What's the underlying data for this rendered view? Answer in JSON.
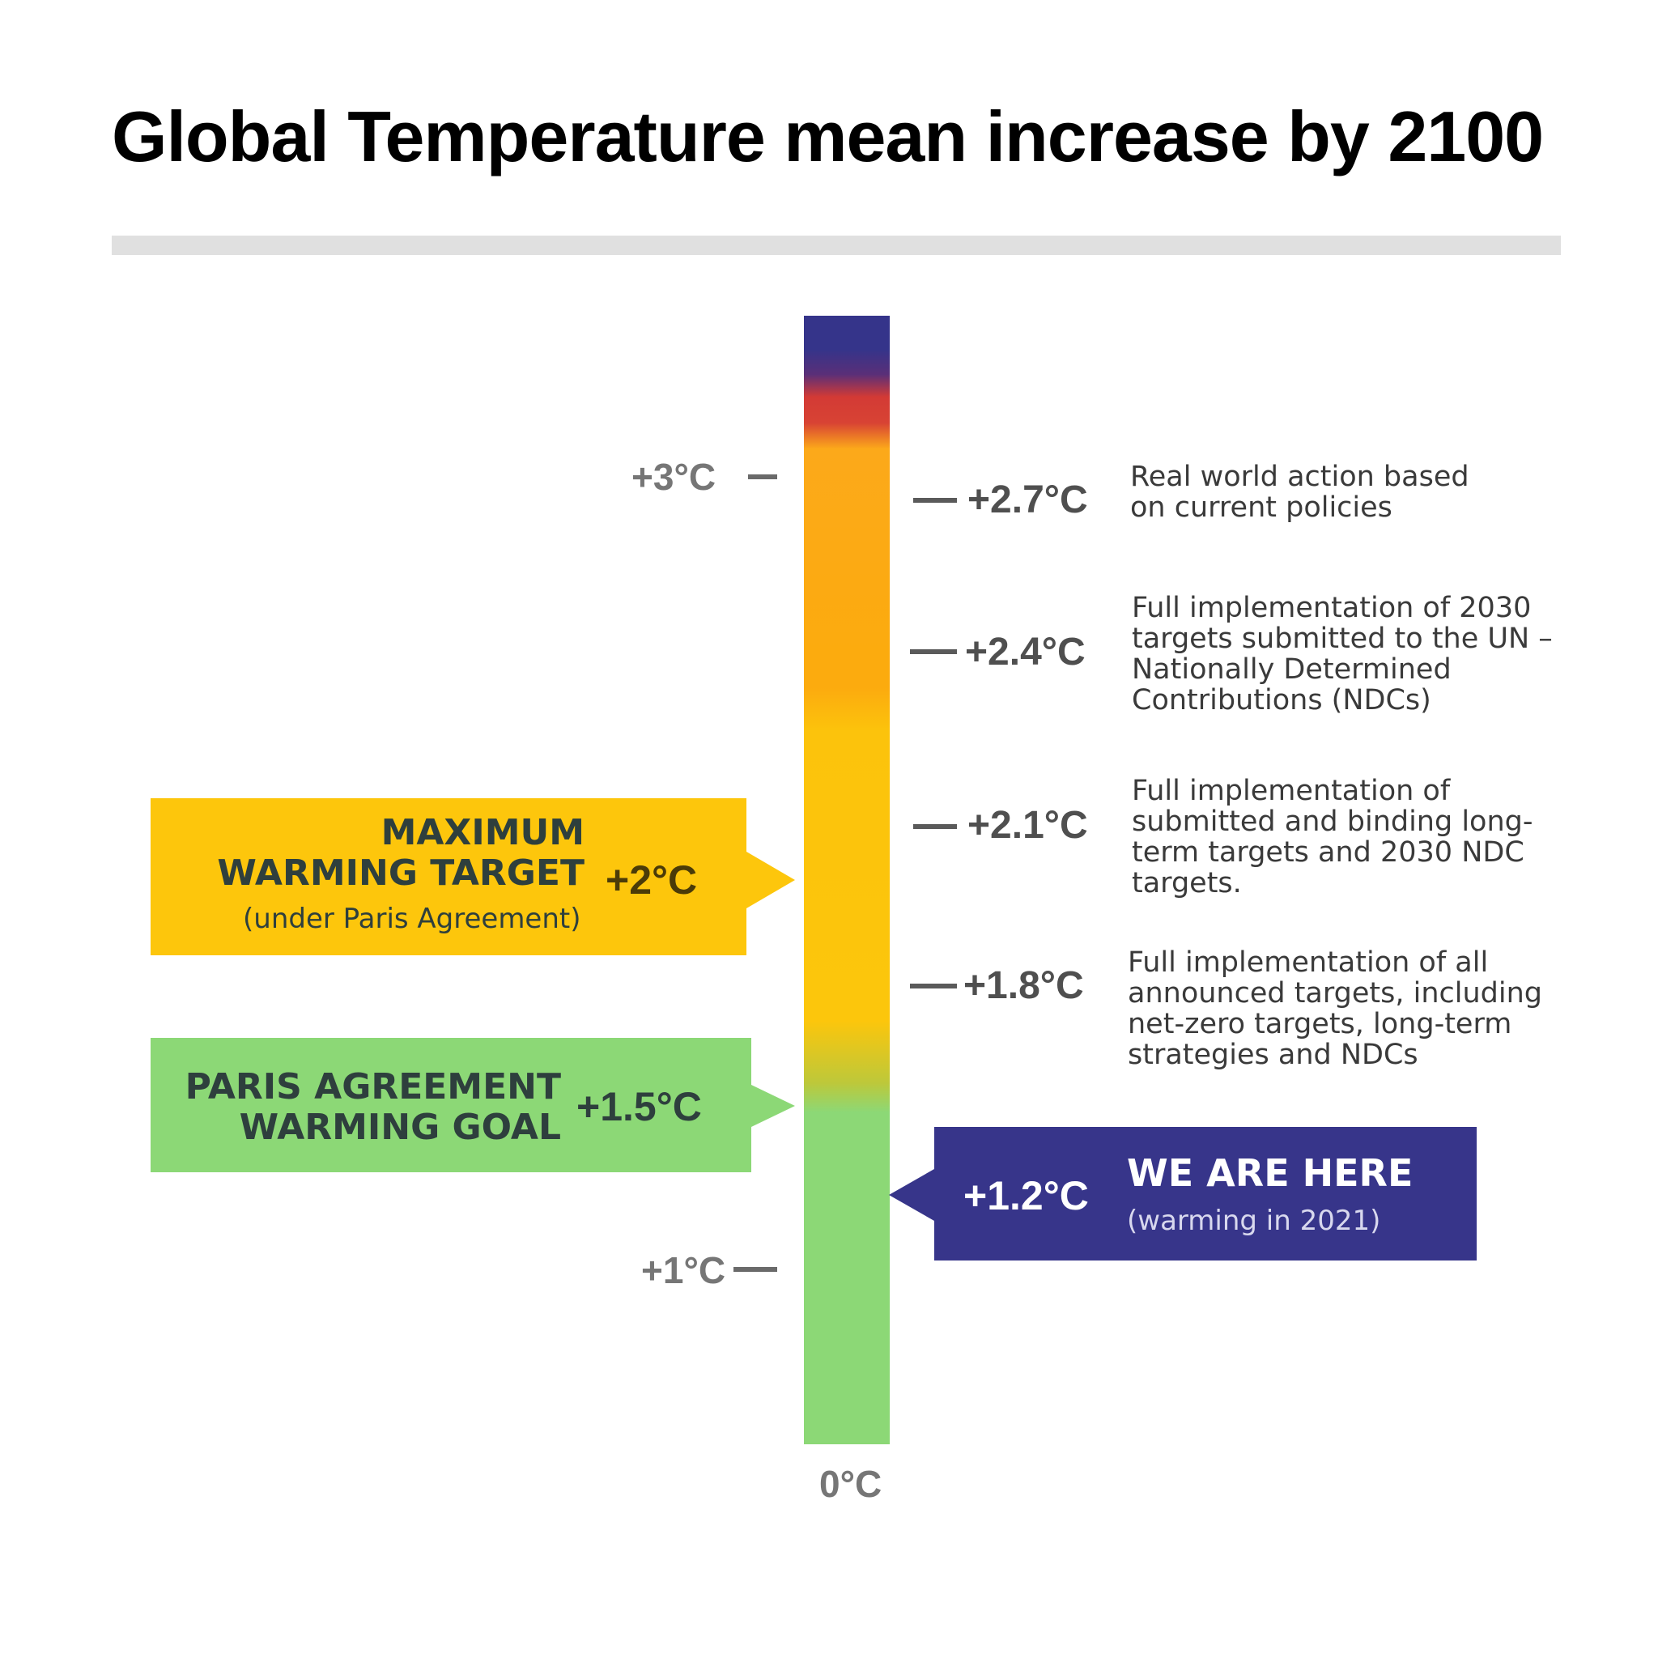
{
  "title": "Global Temperature mean increase by 2100",
  "colors": {
    "blue": "#37358a",
    "green": "#8cd876",
    "yellow": "#fdc60c",
    "orange": "#fcab0e",
    "red": "#d33a35"
  },
  "scale": {
    "min": 0,
    "max": 3.5,
    "labels": {
      "t3": "+3°C",
      "t1": "+1°C",
      "t0": "0°C"
    }
  },
  "scenarios": [
    {
      "value_label": "+2.7°C",
      "description": "Real world action based\non current policies"
    },
    {
      "value_label": "+2.4°C",
      "description": "Full implementation of 2030\ntargets submitted to the UN –\nNationally Determined\nContributions (NDCs)"
    },
    {
      "value_label": "+2.1°C",
      "description": "Full implementation of\nsubmitted and binding long-\nterm targets and 2030 NDC\ntargets."
    },
    {
      "value_label": "+1.8°C",
      "description": "Full implementation of all\nannounced targets, including\nnet-zero targets, long-term\nstrategies and NDCs"
    }
  ],
  "callouts": {
    "max_target": {
      "heading": "MAXIMUM\nWARMING TARGET",
      "value": "+2°C",
      "subtitle": "(under Paris Agreement)"
    },
    "paris_goal": {
      "heading": "PARIS AGREEMENT\nWARMING GOAL",
      "value": "+1.5°C"
    },
    "we_are_here": {
      "value": "+1.2°C",
      "heading": "WE ARE HERE",
      "subtitle": "(warming in 2021)"
    }
  }
}
